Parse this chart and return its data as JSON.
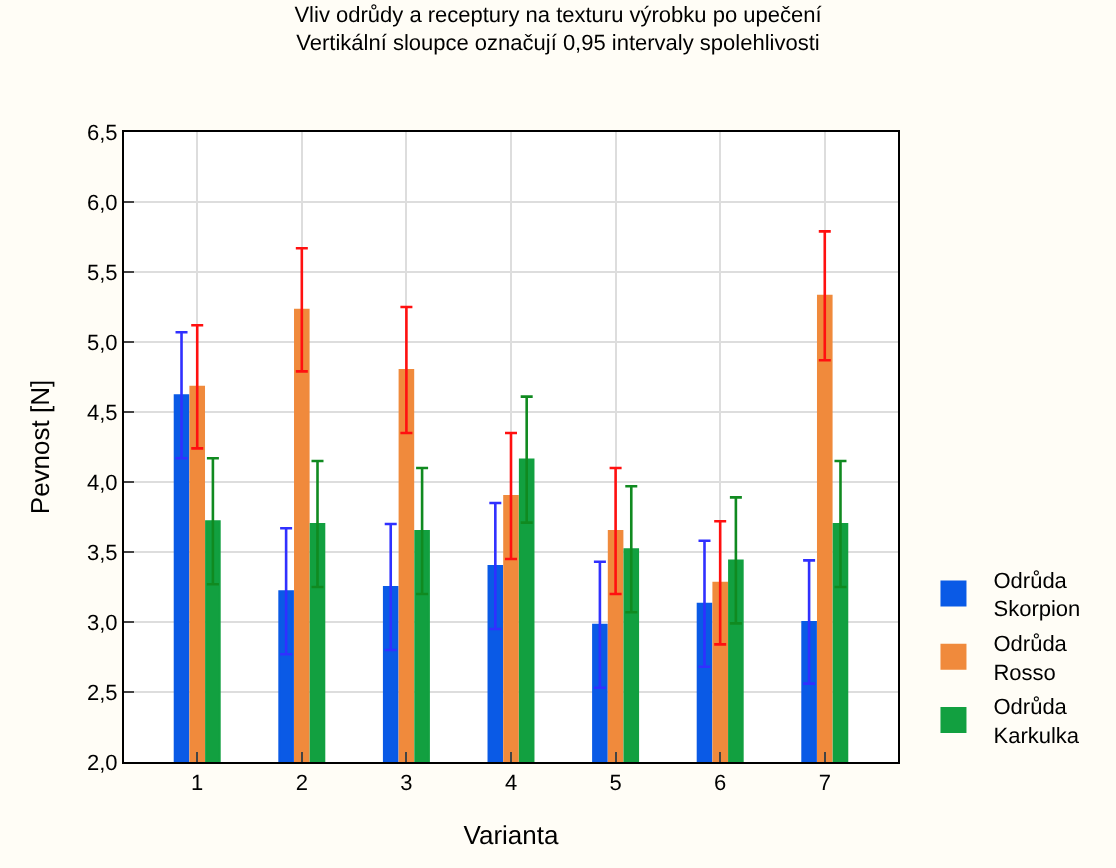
{
  "chart_data": {
    "type": "bar",
    "title": "Vliv odrůdy a receptury na texturu výrobku po upečení",
    "subtitle": "Vertikální sloupce označují 0,95 intervaly spolehlivosti",
    "xlabel": "Varianta",
    "ylabel": "Pevnost [N]",
    "categories": [
      "1",
      "2",
      "3",
      "4",
      "5",
      "6",
      "7"
    ],
    "series": [
      {
        "name": "Odrůda Skorpion",
        "color": "#0a5ae6",
        "values": [
          4.62,
          3.22,
          3.25,
          3.4,
          2.98,
          3.13,
          3.0
        ],
        "errors": [
          0.45,
          0.45,
          0.45,
          0.45,
          0.45,
          0.45,
          0.44
        ]
      },
      {
        "name": "Odrůda Rosso",
        "color": "#f08a3c",
        "values": [
          4.68,
          5.23,
          4.8,
          3.9,
          3.65,
          3.28,
          5.33
        ],
        "errors": [
          0.44,
          0.44,
          0.45,
          0.45,
          0.45,
          0.44,
          0.46
        ]
      },
      {
        "name": "Odrůda Karkulka",
        "color": "#12a040",
        "values": [
          3.72,
          3.7,
          3.65,
          4.16,
          3.52,
          3.44,
          3.7
        ],
        "errors": [
          0.45,
          0.45,
          0.45,
          0.45,
          0.45,
          0.45,
          0.45
        ]
      }
    ],
    "ylim": [
      2.0,
      6.5
    ],
    "yticks": [
      {
        "value": 2.0,
        "label": "2,0"
      },
      {
        "value": 2.5,
        "label": "2,5"
      },
      {
        "value": 3.0,
        "label": "3,0"
      },
      {
        "value": 3.5,
        "label": "3,5"
      },
      {
        "value": 4.0,
        "label": "4,0"
      },
      {
        "value": 4.5,
        "label": "4,5"
      },
      {
        "value": 5.0,
        "label": "5,0"
      },
      {
        "value": 5.5,
        "label": "5,5"
      },
      {
        "value": 6.0,
        "label": "6,0"
      },
      {
        "value": 6.5,
        "label": "6,5"
      }
    ],
    "grid": true,
    "legend": "bottom right"
  }
}
